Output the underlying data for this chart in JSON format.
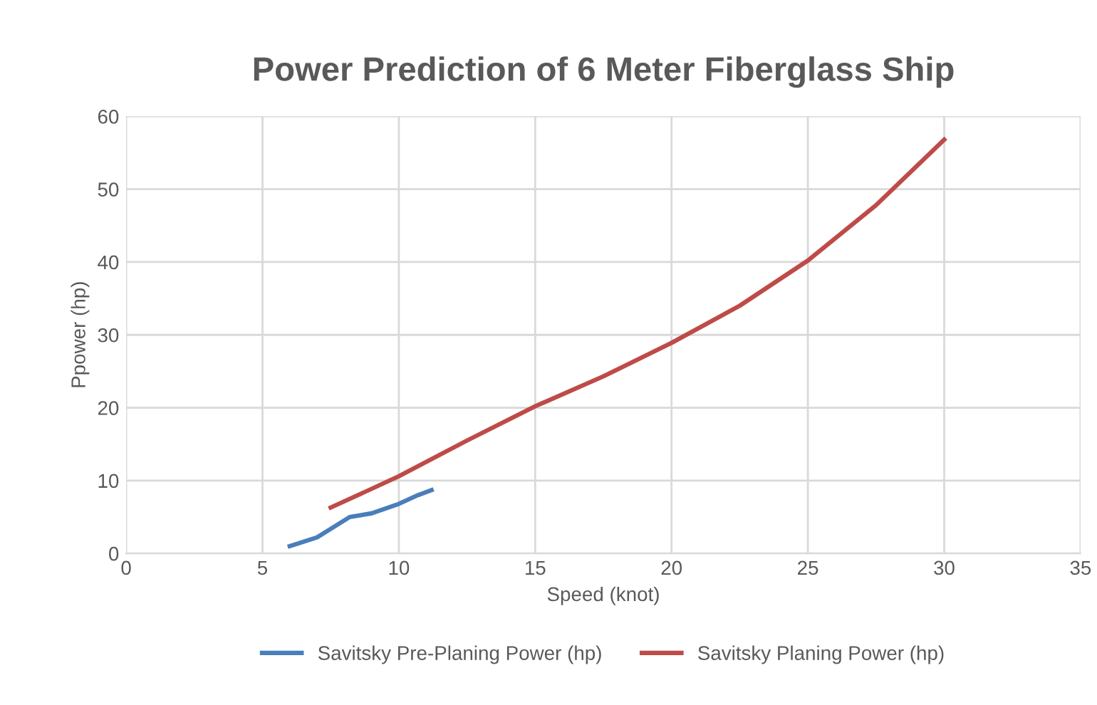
{
  "chart_data": {
    "type": "line",
    "title": "Power Prediction of 6 Meter Fiberglass Ship",
    "xlabel": "Speed (knot)",
    "ylabel": "Ppower (hp)",
    "series": [
      {
        "name": "Savitsky Pre-Planing Power (hp)",
        "color": "#4a7ebb",
        "x": [
          6,
          7,
          8.2,
          9,
          10,
          10.7,
          11.2
        ],
        "values": [
          1,
          2.2,
          5,
          5.5,
          6.8,
          8,
          8.7
        ]
      },
      {
        "name": "Savitsky Planing Power (hp)",
        "color": "#be4b48",
        "x": [
          7.5,
          8.5,
          10,
          12.5,
          15,
          17.5,
          20,
          22.5,
          25,
          27.5,
          30
        ],
        "values": [
          6.3,
          8,
          10.6,
          15.5,
          20.2,
          24.3,
          28.9,
          34,
          40.2,
          47.8,
          56.8
        ]
      }
    ],
    "xlim": [
      0,
      35
    ],
    "xticks": [
      0,
      5,
      10,
      15,
      20,
      25,
      30,
      35
    ],
    "ylim": [
      0,
      60
    ],
    "yticks": [
      0,
      10,
      20,
      30,
      40,
      50,
      60
    ],
    "grid": true,
    "legend": "bottom",
    "marker": "none",
    "line_style": "solid"
  }
}
